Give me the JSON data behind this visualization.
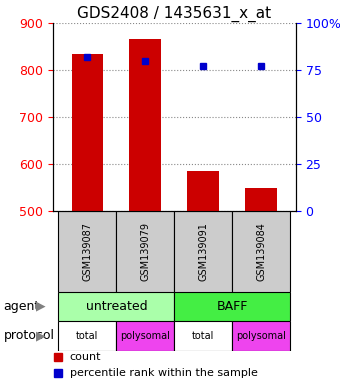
{
  "title": "GDS2408 / 1435631_x_at",
  "samples": [
    "GSM139087",
    "GSM139079",
    "GSM139091",
    "GSM139084"
  ],
  "counts": [
    835,
    865,
    585,
    550
  ],
  "percentiles": [
    82,
    80,
    77,
    77
  ],
  "ylim_left": [
    500,
    900
  ],
  "ylim_right": [
    0,
    100
  ],
  "yticks_left": [
    500,
    600,
    700,
    800,
    900
  ],
  "yticks_right": [
    0,
    25,
    50,
    75,
    100
  ],
  "bar_color": "#cc0000",
  "dot_color": "#0000cc",
  "agent_colors": [
    "#aaffaa",
    "#44ee44"
  ],
  "protocol_colors": [
    "#ffffff",
    "#ee44ee",
    "#ffffff",
    "#ee44ee"
  ],
  "protocol_labels": [
    "total",
    "polysomal",
    "total",
    "polysomal"
  ],
  "grid_color": "#888888",
  "title_fontsize": 11,
  "tick_fontsize": 9
}
